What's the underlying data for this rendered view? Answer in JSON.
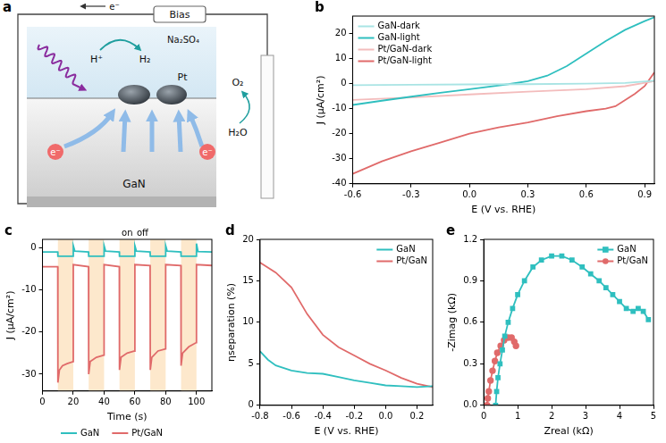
{
  "diagram": {
    "label": "a",
    "bias": "Bias",
    "electron": "e⁻",
    "electrolyte": "Na₂SO₄",
    "proton": "H⁺",
    "hydrogen": "H₂",
    "catalyst": "Pt",
    "oxygen": "O₂",
    "water": "H₂O",
    "substrate": "GaN"
  },
  "chart_data": [
    {
      "label": "b",
      "type": "line",
      "x_label": "E (V vs. RHE)",
      "y_label": "J (μA/cm²)",
      "xlim": [
        -0.6,
        0.95
      ],
      "xticks": [
        -0.6,
        -0.3,
        {
          "value": 0,
          "label": "0.0"
        },
        0.3,
        0.6,
        0.9
      ],
      "ylim": [
        -40,
        27
      ],
      "yticks": [
        -40,
        -30,
        -20,
        -10,
        0,
        10,
        20
      ],
      "grid": false,
      "legend": "upper left",
      "series": [
        {
          "name": "GaN-dark",
          "color": "#a9e4e4",
          "x": [
            -0.6,
            -0.3,
            0,
            0.3,
            0.6,
            0.8,
            0.95
          ],
          "values": [
            -0.6,
            -0.4,
            -0.3,
            -0.2,
            0,
            0.3,
            1.2
          ]
        },
        {
          "name": "GaN-light",
          "color": "#2fbfbf",
          "x": [
            -0.6,
            -0.45,
            -0.3,
            -0.15,
            0,
            0.1,
            0.2,
            0.3,
            0.4,
            0.5,
            0.6,
            0.7,
            0.8,
            0.9,
            0.95
          ],
          "values": [
            -8.5,
            -6.8,
            -5.2,
            -3.6,
            -2.2,
            -1.2,
            -0.2,
            1,
            3.2,
            7,
            12,
            17,
            21.5,
            25,
            26.5
          ]
        },
        {
          "name": "Pt/GaN-dark",
          "color": "#f3bcbc",
          "x": [
            -0.6,
            -0.3,
            0,
            0.3,
            0.6,
            0.8,
            0.95
          ],
          "values": [
            -6.5,
            -5.5,
            -4.3,
            -3.2,
            -2.2,
            -1,
            1
          ]
        },
        {
          "name": "Pt/GaN-light",
          "color": "#e06a6a",
          "x": [
            -0.6,
            -0.45,
            -0.3,
            -0.15,
            0,
            0.15,
            0.3,
            0.45,
            0.6,
            0.7,
            0.75,
            0.8,
            0.85,
            0.9,
            0.95
          ],
          "values": [
            -36,
            -31,
            -27,
            -23.5,
            -20,
            -17.5,
            -15.5,
            -13,
            -11,
            -10,
            -9,
            -6.5,
            -4,
            -1,
            4.5
          ]
        }
      ]
    },
    {
      "label": "c",
      "type": "line",
      "x_label": "Time (s)",
      "y_label": "J (μA/cm²)",
      "xlim": [
        0,
        110
      ],
      "xticks": [
        0,
        20,
        40,
        60,
        80,
        100
      ],
      "ylim": [
        -34,
        2
      ],
      "yticks": [
        -30,
        -20,
        -10,
        0
      ],
      "grid": false,
      "legend": "bottom",
      "light_on": [
        [
          10,
          20
        ],
        [
          30,
          40
        ],
        [
          50,
          60
        ],
        [
          70,
          80
        ],
        [
          90,
          100
        ]
      ],
      "on_label": "on",
      "off_label": "off",
      "series": [
        {
          "name": "GaN",
          "color": "#2fbfbf",
          "x": [
            0,
            9.9,
            10,
            19.9,
            20,
            21,
            29.9,
            30,
            39.9,
            40,
            41,
            49.9,
            50,
            59.9,
            60,
            61,
            69.9,
            70,
            79.9,
            80,
            81,
            89.9,
            90,
            99.9,
            100,
            101,
            110
          ],
          "values": [
            -1,
            -1,
            -2,
            -2,
            0.5,
            -0.8,
            -1,
            -2,
            -2,
            0.5,
            -0.8,
            -1,
            -2,
            -2,
            0.5,
            -0.8,
            -1,
            -2,
            -2,
            0.5,
            -0.8,
            -1,
            -2,
            -2,
            1,
            -0.9,
            -1
          ]
        },
        {
          "name": "Pt/GaN",
          "color": "#e06a6a",
          "x": [
            0,
            9.9,
            10,
            11,
            13,
            16,
            19.9,
            20,
            29.9,
            30,
            31,
            35,
            39.9,
            40,
            49.9,
            50,
            51,
            55,
            59.9,
            60,
            69.9,
            70,
            71,
            75,
            79.9,
            80,
            89.9,
            90,
            91,
            95,
            99.9,
            100,
            110
          ],
          "values": [
            -4.5,
            -4.5,
            -32,
            -29,
            -28,
            -27.5,
            -27,
            -4,
            -4.5,
            -30,
            -27,
            -26,
            -25.5,
            -4,
            -4.5,
            -29,
            -26,
            -25,
            -24.5,
            -4,
            -4.2,
            -29,
            -26,
            -24.5,
            -24,
            -4,
            -4.2,
            -28,
            -25,
            -23.5,
            -22.5,
            -4,
            -4.2
          ]
        }
      ]
    },
    {
      "label": "d",
      "type": "line",
      "x_label": "E (V vs. RHE)",
      "y_label": "ηseparation (%)",
      "xlim": [
        -0.8,
        0.3
      ],
      "xticks": [
        -0.8,
        -0.6,
        -0.4,
        -0.2,
        {
          "value": 0,
          "label": "0.0"
        },
        0.2
      ],
      "ylim": [
        0,
        20
      ],
      "yticks": [
        0,
        5,
        10,
        15,
        20
      ],
      "grid": false,
      "legend": "upper right",
      "series": [
        {
          "name": "GaN",
          "color": "#2fbfbf",
          "x": [
            -0.8,
            -0.75,
            -0.7,
            -0.6,
            -0.5,
            -0.4,
            -0.3,
            -0.2,
            -0.1,
            0,
            0.1,
            0.2,
            0.3
          ],
          "values": [
            6.5,
            5.5,
            4.8,
            4.2,
            3.9,
            3.8,
            3.4,
            3.0,
            2.7,
            2.4,
            2.3,
            2.2,
            2.3
          ]
        },
        {
          "name": "Pt/GaN",
          "color": "#e06a6a",
          "x": [
            -0.8,
            -0.7,
            -0.6,
            -0.5,
            -0.4,
            -0.3,
            -0.2,
            -0.1,
            0,
            0.1,
            0.2,
            0.3
          ],
          "values": [
            17.2,
            16,
            14.2,
            11,
            8.5,
            7,
            6,
            5,
            4.2,
            3.3,
            2.6,
            2.2
          ]
        }
      ]
    },
    {
      "label": "e",
      "type": "line",
      "x_label": "Zreal (kΩ)",
      "y_label": "-Zimag (kΩ)",
      "xlim": [
        0,
        5
      ],
      "xticks": [
        0,
        1,
        2,
        3,
        4,
        5
      ],
      "ylim": [
        0,
        1.2
      ],
      "yticks": [
        {
          "value": 0,
          "label": "0.0"
        },
        0.3,
        0.6,
        0.9,
        1.2
      ],
      "grid": false,
      "legend": "upper right",
      "series": [
        {
          "name": "GaN",
          "color": "#2fbfbf",
          "marker": "square",
          "x": [
            0.35,
            0.38,
            0.42,
            0.48,
            0.55,
            0.62,
            0.72,
            0.85,
            1.0,
            1.2,
            1.45,
            1.7,
            2.0,
            2.3,
            2.6,
            2.9,
            3.15,
            3.4,
            3.6,
            3.8,
            4.0,
            4.2,
            4.4,
            4.55,
            4.7,
            4.85
          ],
          "values": [
            0,
            0.1,
            0.2,
            0.3,
            0.4,
            0.5,
            0.6,
            0.7,
            0.8,
            0.9,
            1.0,
            1.05,
            1.08,
            1.08,
            1.05,
            1.0,
            0.95,
            0.9,
            0.85,
            0.8,
            0.75,
            0.7,
            0.68,
            0.7,
            0.68,
            0.62
          ]
        },
        {
          "name": "Pt/GaN",
          "color": "#e06a6a",
          "marker": "circle",
          "x": [
            0.1,
            0.12,
            0.15,
            0.2,
            0.26,
            0.33,
            0.4,
            0.5,
            0.6,
            0.72,
            0.82,
            0.9,
            0.95
          ],
          "values": [
            0,
            0.05,
            0.1,
            0.18,
            0.25,
            0.32,
            0.38,
            0.43,
            0.47,
            0.49,
            0.49,
            0.46,
            0.43
          ]
        }
      ]
    }
  ]
}
